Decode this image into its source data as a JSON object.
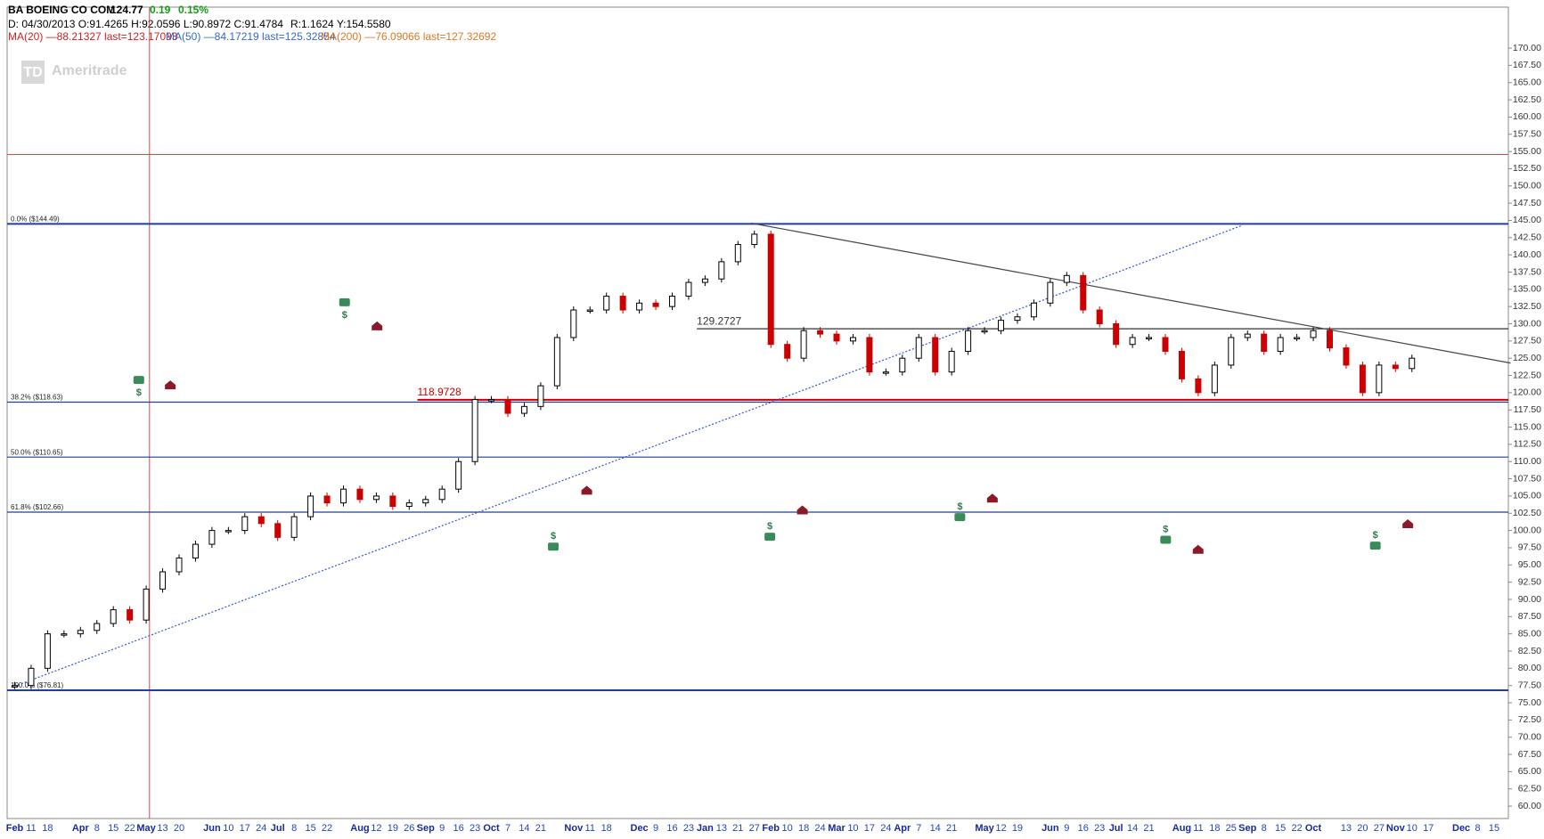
{
  "header": {
    "symbol": "BA BOEING CO COM",
    "last": "124.77",
    "change": "0.19",
    "change_pct": "0.15%",
    "cursor": "D: 04/30/2013 O:91.4265 H:92.0596 L:90.8972 C:91.4784",
    "range": "R:1.1624 Y:154.5580",
    "ma20": "MA(20) —88.21327 last=123.17093",
    "ma50": "MA(50) —84.17219 last=125.32854",
    "ma200": "MA(200) —76.09066 last=127.32692"
  },
  "watermark": {
    "logo": "TD",
    "brand": "Ameritrade"
  },
  "dividend_symbol": "$",
  "chart_data": {
    "type": "candlestick",
    "up_color": "#ffffff",
    "down_color": "#cc0000",
    "categories": [
      "Feb",
      "11",
      "18",
      null,
      "Apr",
      "8",
      "15",
      "22",
      "May",
      "13",
      "20",
      null,
      "Jun",
      "10",
      "17",
      "24",
      "Jul",
      "8",
      "15",
      "22",
      null,
      "Aug",
      "12",
      "19",
      "26",
      "Sep",
      "9",
      "16",
      "23",
      "Oct",
      "7",
      "14",
      "21",
      null,
      "Nov",
      "11",
      "18",
      null,
      "Dec",
      "9",
      "16",
      "23",
      "Jan",
      "13",
      "21",
      "27",
      "Feb",
      "10",
      "18",
      "24",
      "Mar",
      "10",
      "17",
      "24",
      "Apr",
      "7",
      "14",
      "21",
      null,
      "May",
      "12",
      "19",
      null,
      "Jun",
      "9",
      "16",
      "23",
      "Jul",
      "14",
      "21",
      null,
      "Aug",
      "11",
      "18",
      "25",
      "Sep",
      "8",
      "15",
      "22",
      "Oct",
      null,
      "13",
      "20",
      "27",
      "Nov",
      "10",
      "17",
      null,
      "Dec",
      "8",
      "15"
    ],
    "values": [
      77.5,
      80,
      85,
      85,
      85.5,
      86.5,
      88.5,
      87,
      91.5,
      94,
      96,
      98,
      100,
      100,
      102,
      101,
      99,
      102,
      105,
      104,
      106,
      104.5,
      105,
      103.5,
      104,
      104.5,
      106,
      110,
      119,
      119,
      117,
      118,
      121,
      128,
      132,
      132,
      134,
      132,
      133,
      132.5,
      134,
      136,
      136.5,
      139,
      141.5,
      143,
      127,
      125,
      129,
      128.5,
      127.5,
      128,
      123,
      123,
      125,
      128,
      123,
      126,
      129,
      129,
      130.5,
      131,
      133,
      136,
      137,
      132,
      130,
      127,
      128,
      128,
      126,
      122,
      120,
      124,
      128,
      128.5,
      126,
      128,
      128,
      129,
      126.5,
      124,
      120,
      124,
      123.5,
      125,
      null,
      null,
      null,
      null,
      null
    ],
    "ylim": [
      58.2,
      175.95
    ],
    "yticks": [
      {
        "value": 60,
        "label": "60.00"
      },
      {
        "value": 62.5,
        "label": "62.50"
      },
      {
        "value": 65,
        "label": "65.00"
      },
      {
        "value": 67.5,
        "label": "67.50"
      },
      {
        "value": 70,
        "label": "70.00"
      },
      {
        "value": 72.5,
        "label": "72.50"
      },
      {
        "value": 75,
        "label": "75.00"
      },
      {
        "value": 77.5,
        "label": "77.50"
      },
      {
        "value": 80,
        "label": "80.00"
      },
      {
        "value": 82.5,
        "label": "82.50"
      },
      {
        "value": 85,
        "label": "85.00"
      },
      {
        "value": 87.5,
        "label": "87.50"
      },
      {
        "value": 90,
        "label": "90.00"
      },
      {
        "value": 92.5,
        "label": "92.50"
      },
      {
        "value": 95,
        "label": "95.00"
      },
      {
        "value": 97.5,
        "label": "97.50"
      },
      {
        "value": 100,
        "label": "100.00"
      },
      {
        "value": 102.5,
        "label": "102.50"
      },
      {
        "value": 105,
        "label": "105.00"
      },
      {
        "value": 107.5,
        "label": "107.50"
      },
      {
        "value": 110,
        "label": "110.00"
      },
      {
        "value": 112.5,
        "label": "112.50"
      },
      {
        "value": 115,
        "label": "115.00"
      },
      {
        "value": 117.5,
        "label": "117.50"
      },
      {
        "value": 120,
        "label": "120.00"
      },
      {
        "value": 122.5,
        "label": "122.50"
      },
      {
        "value": 125,
        "label": "125.00"
      },
      {
        "value": 127.5,
        "label": "127.50"
      },
      {
        "value": 130,
        "label": "130.00"
      },
      {
        "value": 132.5,
        "label": "132.50"
      },
      {
        "value": 135,
        "label": "135.00"
      },
      {
        "value": 137.5,
        "label": "137.50"
      },
      {
        "value": 140,
        "label": "140.00"
      },
      {
        "value": 142.5,
        "label": "142.50"
      },
      {
        "value": 145,
        "label": "145.00"
      },
      {
        "value": 147.5,
        "label": "147.50"
      },
      {
        "value": 150,
        "label": "150.00"
      },
      {
        "value": 152.5,
        "label": "152.50"
      },
      {
        "value": 155,
        "label": "155.00"
      },
      {
        "value": 157.5,
        "label": "157.50"
      },
      {
        "value": 160,
        "label": "160.00"
      },
      {
        "value": 162.5,
        "label": "162.50"
      },
      {
        "value": 165,
        "label": "165.00"
      },
      {
        "value": 167.5,
        "label": "167.50"
      },
      {
        "value": 170,
        "label": "170.00"
      }
    ],
    "fib_levels": [
      {
        "value": 144.49,
        "label": "0.0%  ($144.49)"
      },
      {
        "value": 118.63,
        "label": "38.2%  ($118.63)"
      },
      {
        "value": 110.65,
        "label": "50.0%  ($110.65)"
      },
      {
        "value": 102.66,
        "label": "61.8%  ($102.66)"
      },
      {
        "value": 76.81,
        "label": "100.0%  ($76.81)"
      }
    ],
    "fib_color": "#1f3f9f",
    "price_lines": [
      {
        "value": 129.2727,
        "color": "#333333",
        "start": 41.5
      },
      {
        "value": 118.9728,
        "color": "#cc0000",
        "start": 24.5
      }
    ],
    "trendlines": [
      {
        "color": "#444444",
        "dash": false,
        "start": {
          "x": 44.8,
          "y": 144.6
        },
        "end": {
          "x": 91,
          "y": 124.3
        }
      },
      {
        "color": "#3355cc",
        "dash": true,
        "start": {
          "x": 0,
          "y": 77.4
        },
        "end": {
          "x": 74.7,
          "y": 144.3
        }
      }
    ],
    "crosshair": {
      "x": 8.2,
      "y": 154.558,
      "color": "#dd4444"
    }
  }
}
